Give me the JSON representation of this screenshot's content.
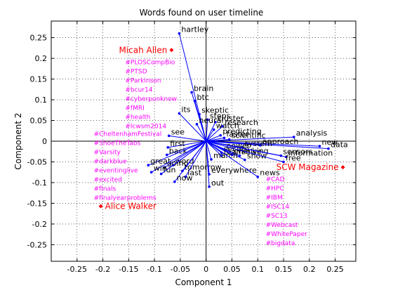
{
  "chart_data": {
    "type": "scatter",
    "title": "Words found on user timeline",
    "xlabel": "Component 1",
    "ylabel": "Component 2",
    "xlim": [
      -0.3,
      0.29
    ],
    "ylim": [
      -0.29,
      0.29
    ],
    "xticks": [
      -0.25,
      -0.2,
      -0.15,
      -0.1,
      -0.05,
      0,
      0.05,
      0.1,
      0.15,
      0.2,
      0.25
    ],
    "yticks": [
      0.25,
      0.2,
      0.15,
      0.1,
      0.05,
      0,
      -0.05,
      -0.1,
      -0.15,
      -0.2,
      -0.25
    ],
    "grid": true,
    "colors": {
      "vector": "#0000ff",
      "user": "#ff0000",
      "hashtag": "#ff00ff",
      "word": "#000000"
    },
    "word_vectors": [
      {
        "label": "hartley",
        "x": -0.052,
        "y": 0.26
      },
      {
        "label": "brain",
        "x": -0.028,
        "y": 0.118
      },
      {
        "label": "btc",
        "x": -0.022,
        "y": 0.097
      },
      {
        "label": "its",
        "x": -0.052,
        "y": 0.067
      },
      {
        "label": "skeptic",
        "x": -0.013,
        "y": 0.065
      },
      {
        "label": "steps",
        "x": 0.003,
        "y": 0.052
      },
      {
        "label": "cluster",
        "x": 0.018,
        "y": 0.046
      },
      {
        "label": "neural",
        "x": -0.018,
        "y": 0.041
      },
      {
        "label": "research",
        "x": 0.032,
        "y": 0.036
      },
      {
        "label": "watch",
        "x": 0.015,
        "y": 0.028
      },
      {
        "label": "predicting",
        "x": 0.028,
        "y": 0.014
      },
      {
        "label": "faster",
        "x": 0.035,
        "y": 0.008
      },
      {
        "label": "scientific",
        "x": 0.045,
        "y": 0.004
      },
      {
        "label": "analysis",
        "x": 0.17,
        "y": 0.01
      },
      {
        "label": "see",
        "x": -0.072,
        "y": 0.013
      },
      {
        "label": "first",
        "x": -0.074,
        "y": -0.015
      },
      {
        "label": "approach",
        "x": 0.105,
        "y": -0.01
      },
      {
        "label": "new",
        "x": 0.22,
        "y": -0.012
      },
      {
        "label": "data",
        "x": 0.237,
        "y": -0.018
      },
      {
        "label": "system",
        "x": 0.07,
        "y": -0.015
      },
      {
        "label": "power",
        "x": 0.035,
        "y": -0.02
      },
      {
        "label": "secure",
        "x": 0.03,
        "y": -0.028
      },
      {
        "label": "checking",
        "x": 0.05,
        "y": -0.033
      },
      {
        "label": "team",
        "x": 0.03,
        "y": -0.035
      },
      {
        "label": "solve",
        "x": 0.065,
        "y": -0.035
      },
      {
        "label": "sensors",
        "x": 0.145,
        "y": -0.035
      },
      {
        "label": "information",
        "x": 0.155,
        "y": -0.038
      },
      {
        "label": "show",
        "x": 0.075,
        "y": -0.045
      },
      {
        "label": "free",
        "x": 0.15,
        "y": -0.05
      },
      {
        "label": "back",
        "x": -0.076,
        "y": -0.033
      },
      {
        "label": "march",
        "x": 0.01,
        "y": -0.044
      },
      {
        "label": "great",
        "x": -0.112,
        "y": -0.058
      },
      {
        "label": "word",
        "x": -0.064,
        "y": -0.058
      },
      {
        "label": "going",
        "x": -0.08,
        "y": -0.063
      },
      {
        "label": "tomorrow",
        "x": -0.046,
        "y": -0.072
      },
      {
        "label": "win",
        "x": -0.106,
        "y": -0.075
      },
      {
        "label": "fun",
        "x": -0.087,
        "y": -0.079
      },
      {
        "label": "last",
        "x": -0.04,
        "y": -0.086
      },
      {
        "label": "everywhere",
        "x": 0.006,
        "y": -0.08
      },
      {
        "label": "now",
        "x": -0.061,
        "y": -0.098
      },
      {
        "label": "news",
        "x": 0.1,
        "y": -0.086
      },
      {
        "label": "out",
        "x": 0.006,
        "y": -0.11
      }
    ],
    "users": [
      {
        "label": "Micah Allen",
        "x": -0.067,
        "y": 0.22,
        "hashtags": [
          "#PLOSCompBio",
          "#PTSD",
          "#Parkinson",
          "#bcur14",
          "#cyberpunknow",
          "#fMRI",
          "#health",
          "#lcwsm2014"
        ]
      },
      {
        "label": "Alice Walker",
        "x": -0.204,
        "y": -0.157,
        "hashtags": [
          "#CheltenhamFestival",
          "#ShoeTheTabs",
          "#Varsity",
          "#darkblue",
          "#eventinglive",
          "#excited",
          "#finals",
          "#finalyearproblems"
        ]
      },
      {
        "label": "SCW Magazine",
        "x": 0.265,
        "y": -0.063,
        "hashtags": [
          "#CAD",
          "#HPC",
          "#IBM",
          "#ISC14",
          "#SC13",
          "#Webcast",
          "#WhitePaper",
          "#bigdata"
        ]
      }
    ]
  }
}
